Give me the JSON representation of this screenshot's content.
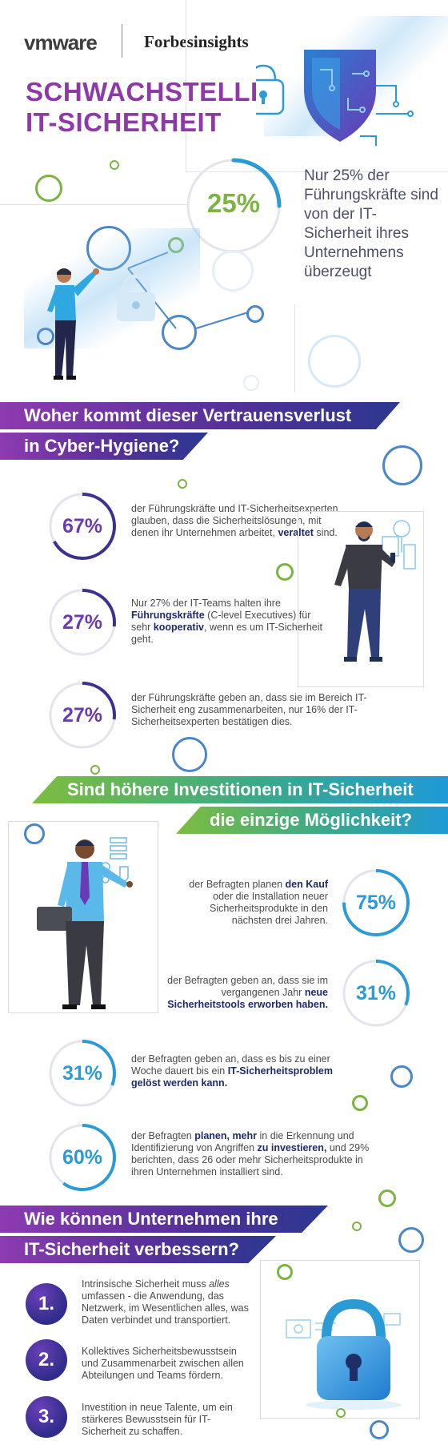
{
  "header": {
    "logo_vmware": "vmware",
    "logo_forbes": "Forbesinsights",
    "title_line1": "SCHWACHSTELLE",
    "title_line2": "IT-SICHERHEIT"
  },
  "hero": {
    "percent": "25%",
    "percent_value": 25,
    "claim": "Nur 25% der Führungskräfte sind von der IT-Sicherheit ihres Unternehmens überzeugt"
  },
  "section1": {
    "banner_line1": "Woher kommt dieser Vertrauensverlust",
    "banner_line2": "in Cyber-Hygiene?",
    "stats": [
      {
        "pct": "67%",
        "value": 67,
        "pre": "der Führungskräfte und IT-Sicherheitsexperten glauben, dass die Sicherheitslösungen, mit denen ihr Unternehmen arbeitet, ",
        "bold": "veraltet",
        "post": " sind."
      },
      {
        "pct": "27%",
        "value": 27,
        "pre": "Nur 27% der IT-Teams halten ihre ",
        "bold": "Führungskräfte",
        "mid": " (C-level Executives) für sehr ",
        "bold2": "kooperativ",
        "post": ", wenn es um IT-Sicherheit geht."
      },
      {
        "pct": "27%",
        "value": 27,
        "pre": "der Führungskräfte geben an, dass sie im Bereich IT-Sicherheit eng zusammenarbeiten, nur 16% der IT-Sicherheitsexperten bestätigen dies.",
        "bold": "",
        "post": ""
      }
    ]
  },
  "section2": {
    "banner_line1": "Sind höhere Investitionen in IT-Sicherheit",
    "banner_line2": "die einzige Möglichkeit?",
    "stats": [
      {
        "pct": "75%",
        "value": 75,
        "pre": "der Befragten planen ",
        "bold": "den Kauf",
        "post": " oder die Installation neuer Sicherheitsprodukte in den nächsten drei Jahren."
      },
      {
        "pct": "31%",
        "value": 31,
        "pre": "der Befragten geben an, dass sie im vergangenen Jahr ",
        "bold": "neue Sicherheitstools erworben haben.",
        "post": ""
      },
      {
        "pct": "31%",
        "value": 31,
        "pre": "der Befragten geben an, dass es bis zu einer Woche dauert bis ein ",
        "bold": "IT-Sicherheitsproblem gelöst werden kann.",
        "post": ""
      },
      {
        "pct": "60%",
        "value": 60,
        "pre": "der Befragten ",
        "bold": "planen, mehr",
        "mid": " in die Erkennung und Identifizierung von Angriffen ",
        "bold2": "zu investieren,",
        "post": " und 29% berichten, dass 26 oder mehr Sicherheitsprodukte in ihren Unternehmen installiert sind."
      }
    ]
  },
  "section3": {
    "banner_line1": "Wie können Unternehmen ihre",
    "banner_line2": "IT-Sicherheit verbessern?",
    "steps": [
      {
        "num": "1.",
        "pre": "Intrinsische Sicherheit muss ",
        "em": "alles",
        "post": " umfassen - die Anwendung, das Netzwerk, im Wesentlichen alles, was Daten verbindet und transportiert."
      },
      {
        "num": "2.",
        "pre": "Kollektives Sicherheitsbewusstsein und Zusammenarbeit zwischen allen Abteilungen und Teams fördern.",
        "em": "",
        "post": ""
      },
      {
        "num": "3.",
        "pre": "Investition in neue Talente, um ein stärkeres Bewusstsein für IT-Sicherheit zu schaffen.",
        "em": "",
        "post": ""
      }
    ]
  },
  "colors": {
    "purple": "#8e3aa6",
    "navy": "#2f2c8a",
    "green": "#7cb442",
    "blue": "#2b9ad5",
    "text_dark": "#1f2a6b"
  },
  "icons": [
    "shield-icon",
    "padlock-icon",
    "person-pointing-icon",
    "businessman-icon",
    "lock-icon"
  ]
}
